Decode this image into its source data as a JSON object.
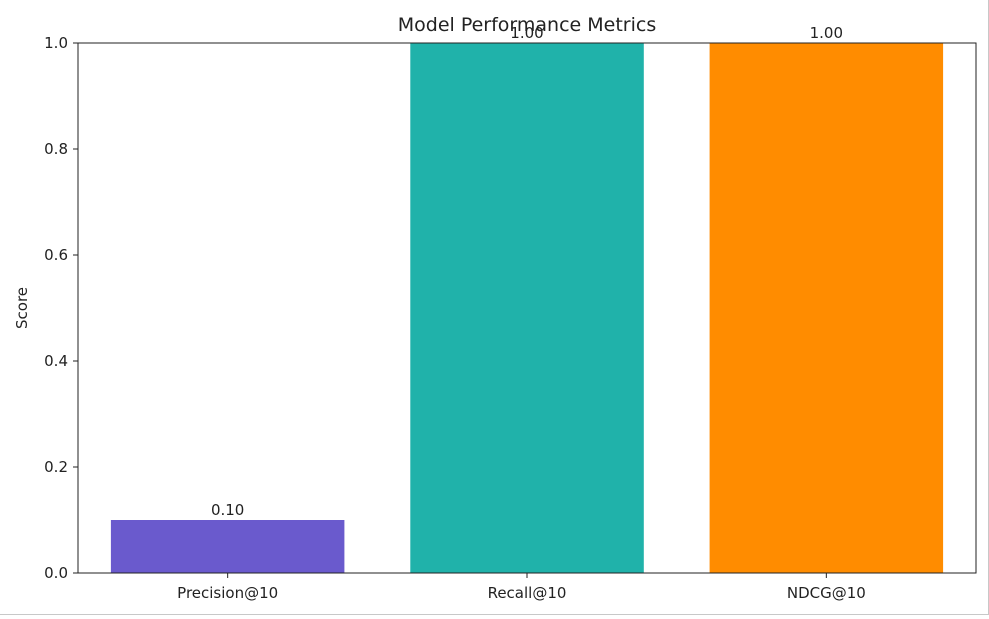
{
  "chart_data": {
    "type": "bar",
    "title": "Model Performance Metrics",
    "xlabel": "",
    "ylabel": "Score",
    "categories": [
      "Precision@10",
      "Recall@10",
      "NDCG@10"
    ],
    "values": [
      0.1,
      1.0,
      1.0
    ],
    "value_labels": [
      "0.10",
      "1.00",
      "1.00"
    ],
    "colors": [
      "#6a5acd",
      "#20b2aa",
      "#ff8c00"
    ],
    "ylim": [
      0,
      1.0
    ],
    "yticks": [
      0.0,
      0.2,
      0.4,
      0.6,
      0.8,
      1.0
    ],
    "ytick_labels": [
      "0.0",
      "0.2",
      "0.4",
      "0.6",
      "0.8",
      "1.0"
    ],
    "grid": false,
    "legend": "none"
  }
}
